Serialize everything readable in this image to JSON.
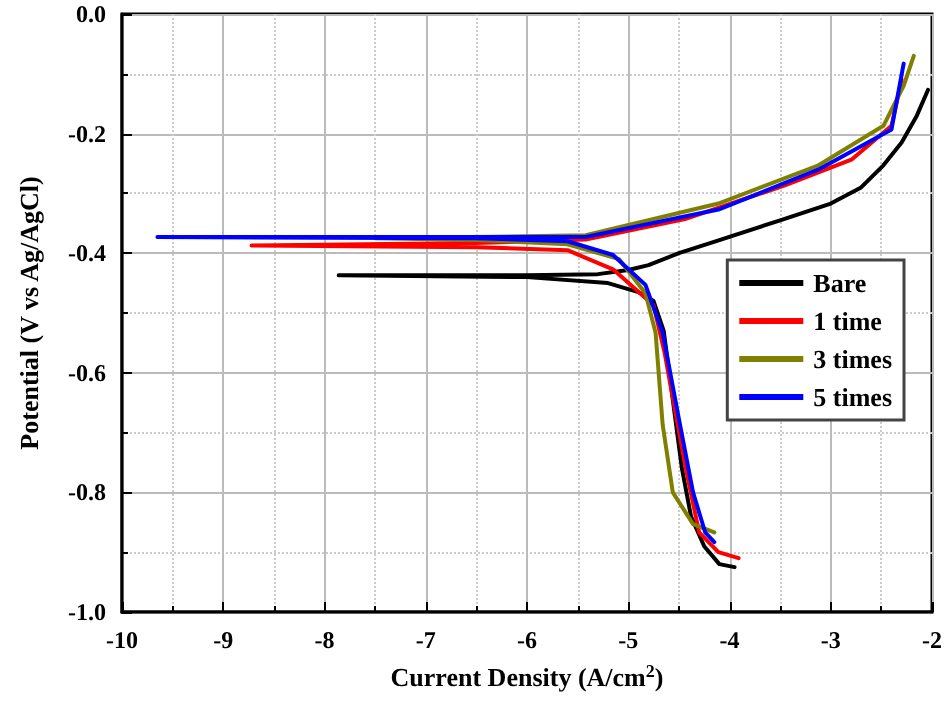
{
  "chart_data": {
    "type": "line",
    "xlabel": "Current Density (A/cm$^{2}$)",
    "ylabel": "Potential (V vs Ag/AgCl)",
    "xlim": [
      -10,
      -2
    ],
    "xticks": [
      -10,
      -9,
      -8,
      -7,
      -6,
      -5,
      -4,
      -3,
      -2
    ],
    "ylim": [
      -1.0,
      0.0
    ],
    "yticks": [
      {
        "value": -1.0,
        "label": "-1.0"
      },
      -0.8,
      -0.6,
      -0.4,
      -0.2,
      {
        "value": 0.0,
        "label": "0.0"
      }
    ],
    "grid": true,
    "legend": "right",
    "line_style": "solid",
    "marker": "none",
    "series": [
      {
        "name": "Bare",
        "color": "#000000",
        "x": [
          -3.95,
          -4.1,
          -4.25,
          -4.38,
          -4.47,
          -4.65,
          -4.75,
          -4.9,
          -5.2,
          -6.0,
          -7.86,
          -6.0,
          -5.3,
          -5.0,
          -4.8,
          -4.5,
          -4.1,
          -3.5,
          -3.0,
          -2.7,
          -2.48,
          -2.3,
          -2.15,
          -2.04
        ],
        "values": [
          -0.925,
          -0.92,
          -0.89,
          -0.84,
          -0.76,
          -0.53,
          -0.48,
          -0.465,
          -0.45,
          -0.44,
          -0.437,
          -0.437,
          -0.435,
          -0.428,
          -0.42,
          -0.4,
          -0.378,
          -0.345,
          -0.317,
          -0.29,
          -0.253,
          -0.215,
          -0.17,
          -0.127
        ]
      },
      {
        "name": "1 time",
        "color": "#ff0000",
        "x": [
          -3.91,
          -4.11,
          -4.3,
          -4.44,
          -4.64,
          -4.75,
          -5.15,
          -5.6,
          -6.5,
          -8.72,
          -6.5,
          -5.42,
          -4.44,
          -3.46,
          -2.79,
          -2.4,
          -2.3
        ],
        "values": [
          -0.91,
          -0.9,
          -0.867,
          -0.753,
          -0.567,
          -0.487,
          -0.427,
          -0.395,
          -0.39,
          -0.387,
          -0.383,
          -0.377,
          -0.343,
          -0.287,
          -0.243,
          -0.187,
          -0.11
        ]
      },
      {
        "name": "3 times",
        "color": "#808000",
        "x": [
          -4.15,
          -4.36,
          -4.56,
          -4.66,
          -4.73,
          -4.83,
          -5.09,
          -5.6,
          -6.5,
          -7.5,
          -6.5,
          -5.42,
          -4.11,
          -3.12,
          -2.48,
          -2.28,
          -2.18
        ],
        "values": [
          -0.867,
          -0.853,
          -0.8,
          -0.687,
          -0.533,
          -0.467,
          -0.41,
          -0.385,
          -0.378,
          -0.375,
          -0.373,
          -0.37,
          -0.317,
          -0.253,
          -0.187,
          -0.12,
          -0.07
        ]
      },
      {
        "name": "5 times",
        "color": "#0000ff",
        "x": [
          -4.15,
          -4.24,
          -4.36,
          -4.5,
          -4.66,
          -4.83,
          -5.15,
          -5.6,
          -6.5,
          -9.65,
          -6.5,
          -5.42,
          -4.11,
          -3.12,
          -2.4,
          -2.28
        ],
        "values": [
          -0.883,
          -0.867,
          -0.8,
          -0.677,
          -0.533,
          -0.453,
          -0.403,
          -0.38,
          -0.375,
          -0.373,
          -0.373,
          -0.373,
          -0.327,
          -0.26,
          -0.193,
          -0.083
        ]
      }
    ]
  }
}
